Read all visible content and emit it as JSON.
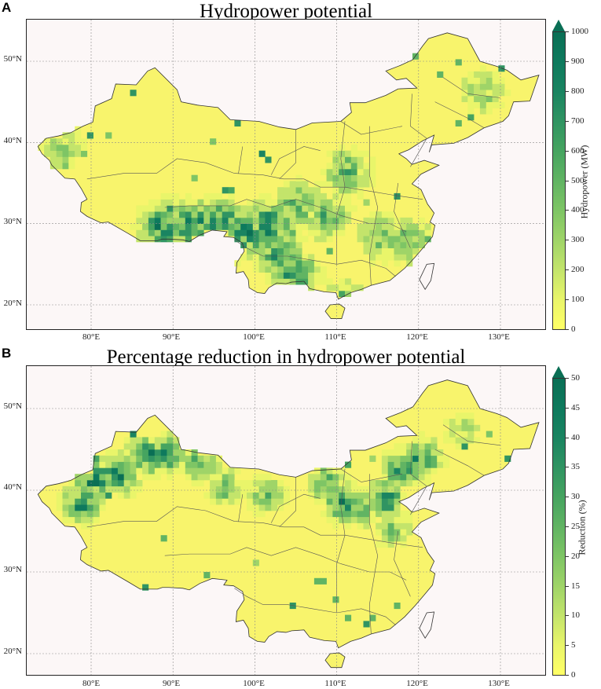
{
  "panels": [
    {
      "letter": "A",
      "title": "Hydropower potential",
      "lat_labels": [
        "50°N",
        "40°N",
        "30°N",
        "20°N"
      ],
      "lon_labels": [
        "80°E",
        "90°E",
        "100°E",
        "110°E",
        "120°E",
        "130°E"
      ],
      "colorbar": {
        "title": "Hydropower (MW)",
        "ticks": [
          "0",
          "100",
          "200",
          "300",
          "400",
          "500",
          "600",
          "700",
          "800",
          "900",
          "1000"
        ],
        "extend": "max"
      }
    },
    {
      "letter": "B",
      "title": "Percentage reduction in hydropower potential",
      "lat_labels": [
        "50°N",
        "40°N",
        "30°N",
        "20°N"
      ],
      "lon_labels": [
        "80°E",
        "90°E",
        "100°E",
        "110°E",
        "120°E",
        "130°E"
      ],
      "colorbar": {
        "title": "Reduction (%)",
        "ticks": [
          "0",
          "5",
          "10",
          "15",
          "20",
          "25",
          "30",
          "35",
          "40",
          "45",
          "50"
        ],
        "extend": "max"
      }
    }
  ],
  "colors": {
    "colormap": [
      "#ffff66",
      "#e9f56a",
      "#c3e46b",
      "#9fd468",
      "#7ec565",
      "#61b463",
      "#46a460",
      "#309462",
      "#1a8461",
      "#0e7a5d",
      "#0a6f55"
    ],
    "land_base": "#f8f46c",
    "background": "#fcf7f7",
    "border": "#333333",
    "grid": "#8a8a8a"
  },
  "map_data": {
    "hotspots_a": [
      {
        "lon": 88.5,
        "lat": 29.3,
        "level": 0.95
      },
      {
        "lon": 92.0,
        "lat": 29.5,
        "level": 0.9
      },
      {
        "lon": 95.5,
        "lat": 29.8,
        "level": 0.85
      },
      {
        "lon": 98.5,
        "lat": 28.5,
        "level": 0.9
      },
      {
        "lon": 101.5,
        "lat": 29.5,
        "level": 0.85
      },
      {
        "lon": 102.5,
        "lat": 26.0,
        "level": 0.75
      },
      {
        "lon": 104.5,
        "lat": 23.5,
        "level": 0.8
      },
      {
        "lon": 105.0,
        "lat": 32.0,
        "level": 0.6
      },
      {
        "lon": 108.5,
        "lat": 30.5,
        "level": 0.6
      },
      {
        "lon": 110.5,
        "lat": 19.5,
        "level": 0.7
      },
      {
        "lon": 111.0,
        "lat": 36.0,
        "level": 0.6
      },
      {
        "lon": 115.0,
        "lat": 28.0,
        "level": 0.5
      },
      {
        "lon": 118.5,
        "lat": 27.5,
        "level": 0.5
      },
      {
        "lon": 127.5,
        "lat": 46.0,
        "level": 0.4
      },
      {
        "lon": 76.0,
        "lat": 39.0,
        "level": 0.4
      }
    ],
    "hotspots_b": [
      {
        "lon": 80.0,
        "lat": 41.0,
        "level": 0.95
      },
      {
        "lon": 83.0,
        "lat": 41.5,
        "level": 0.9
      },
      {
        "lon": 78.5,
        "lat": 38.0,
        "level": 0.85
      },
      {
        "lon": 86.5,
        "lat": 44.0,
        "level": 0.9
      },
      {
        "lon": 89.0,
        "lat": 44.0,
        "level": 0.85
      },
      {
        "lon": 93.0,
        "lat": 43.0,
        "level": 0.6
      },
      {
        "lon": 96.0,
        "lat": 40.0,
        "level": 0.5
      },
      {
        "lon": 101.0,
        "lat": 39.0,
        "level": 0.5
      },
      {
        "lon": 108.5,
        "lat": 40.5,
        "level": 0.6
      },
      {
        "lon": 110.5,
        "lat": 38.0,
        "level": 0.8
      },
      {
        "lon": 112.5,
        "lat": 37.5,
        "level": 0.6
      },
      {
        "lon": 115.5,
        "lat": 38.5,
        "level": 0.85
      },
      {
        "lon": 117.5,
        "lat": 42.0,
        "level": 0.75
      },
      {
        "lon": 120.0,
        "lat": 43.5,
        "level": 0.8
      },
      {
        "lon": 116.5,
        "lat": 35.0,
        "level": 0.45
      },
      {
        "lon": 125.0,
        "lat": 47.0,
        "level": 0.3
      }
    ]
  }
}
